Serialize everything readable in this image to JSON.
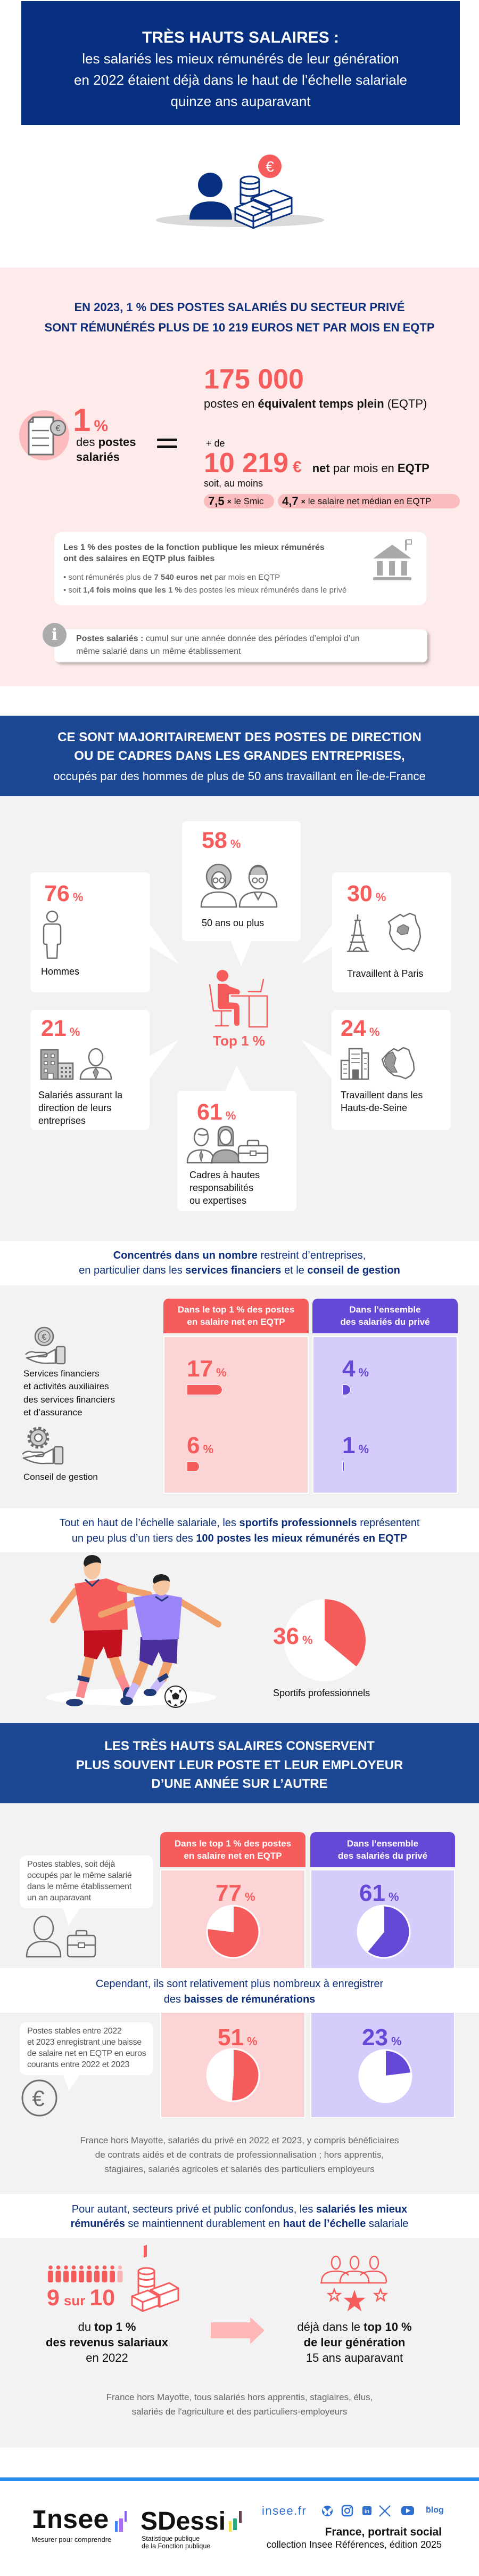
{
  "header": {
    "title": "TRÈS HAUTS SALAIRES :",
    "subtitle_lines": [
      "les salariés les mieux rémunérés de leur génération",
      "en 2022 étaient déjà dans le haut de l’échelle salariale",
      "quinze ans auparavant"
    ],
    "illustration_icon": "person-with-money-icon"
  },
  "intro": {
    "heading_lines": [
      "EN 2023, 1 % DES POSTES SALARIÉS DU SECTEUR PRIVÉ",
      "SONT RÉMUNÉRÉS PLUS DE 10 219 EUROS NET PAR MOIS EN EQTP"
    ],
    "share_value": "1",
    "share_unit": "%",
    "share_label_line1": [
      {
        "t": "des "
      },
      {
        "t": "postes",
        "b": true
      }
    ],
    "share_label_line2": "salariés",
    "count_value": "175 000",
    "count_caption": [
      {
        "t": "postes en "
      },
      {
        "t": "équivalent temps plein",
        "b": true
      },
      {
        "t": " (EQTP)"
      }
    ],
    "threshold_prefix": "+ de",
    "threshold_value": "10 219",
    "threshold_currency": "€",
    "threshold_caption": [
      {
        "t": "net",
        "b": true
      },
      {
        "t": " par mois en "
      },
      {
        "t": "EQTP",
        "b": true
      }
    ],
    "threshold_soit": "soit, au moins",
    "pills": [
      {
        "value": "7,5",
        "times": "×",
        "label": "le Smic"
      },
      {
        "value": "4,7",
        "times": "×",
        "label": "le salaire net médian en EQTP"
      }
    ],
    "public_box": {
      "title_lines": [
        "Les 1 % des postes de la fonction publique les mieux rémunérés",
        "ont des salaires en EQTP plus faibles"
      ],
      "bullets": [
        [
          {
            "t": "• sont rémunérés plus de "
          },
          {
            "t": "7 540 euros net",
            "b": true
          },
          {
            "t": " par mois en EQTP"
          }
        ],
        [
          {
            "t": "• soit "
          },
          {
            "t": "1,4 fois moins que les 1 %",
            "b": true
          },
          {
            "t": " des postes les mieux rémunérés dans le privé"
          }
        ]
      ]
    },
    "info_box": {
      "icon": "i",
      "line1": [
        {
          "t": "Postes salariés  :",
          "b": true
        },
        {
          "t": " cumul sur une année donnée des périodes d’emploi d’un"
        }
      ],
      "line2": "même salarié dans un même établissement"
    }
  },
  "profile": {
    "heading_lines": [
      "CE SONT MAJORITAIREMENT DES POSTES DE DIRECTION",
      "OU DE CADRES DANS LES GRANDES ENTREPRISES,"
    ],
    "subheading": "occupés par des hommes de plus de 50 ans travaillant en Île-de-France",
    "unit": "%",
    "center_label": "Top 1 %",
    "cards": [
      {
        "label_lines": [
          "Hommes"
        ]
      },
      {
        "label_lines": [
          "50 ans ou plus"
        ]
      },
      {
        "label_lines": [
          "Travaillent à Paris"
        ]
      },
      {
        "label_lines": [
          "Salariés assurant la",
          "direction de leurs",
          "entreprises"
        ]
      },
      {
        "label_lines": [
          "Travaillent dans les",
          "Hauts-de-Seine"
        ]
      },
      {
        "label_lines": [
          "Cadres à hautes",
          "responsabilités",
          "ou expertises"
        ]
      }
    ]
  },
  "sectors": {
    "intro_lines": [
      [
        {
          "t": "Concentrés dans un nombre",
          "b": true
        },
        {
          "t": " restreint d’entreprises,"
        }
      ],
      [
        {
          "t": "en particulier dans les "
        },
        {
          "t": "services financiers",
          "b": true
        },
        {
          "t": " et le "
        },
        {
          "t": "conseil de gestion",
          "b": true
        }
      ]
    ],
    "column_headers": [
      [
        "Dans le top 1 % des postes",
        "en salaire net en EQTP"
      ],
      [
        "Dans l’ensemble",
        "des salariés du privé"
      ]
    ],
    "rows": [
      {
        "label_lines": [
          "Services financiers",
          "et activités auxiliaires",
          "des services financiers",
          "et d’assurance"
        ]
      },
      {
        "label_lines": [
          "Conseil de gestion"
        ]
      }
    ],
    "unit": "%"
  },
  "sports": {
    "intro_lines": [
      [
        {
          "t": "Tout en haut de l’échelle salariale, les "
        },
        {
          "t": "sportifs professionnels",
          "b": true
        },
        {
          "t": " représentent"
        }
      ],
      [
        {
          "t": "un peu plus d’un tiers des "
        },
        {
          "t": "100 postes les mieux rémunérés en EQTP",
          "b": true
        }
      ]
    ],
    "label": "Sportifs professionnels",
    "unit": "%"
  },
  "stability": {
    "heading_lines": [
      "LES TRÈS HAUTS SALAIRES CONSERVENT",
      "PLUS SOUVENT LEUR POSTE ET LEUR EMPLOYEUR",
      "D’UNE ANNÉE SUR L’AUTRE"
    ],
    "column_headers": [
      [
        "Dans le top 1 % des postes",
        "en salaire net en EQTP"
      ],
      [
        "Dans l’ensemble",
        "des salariés du privé"
      ]
    ],
    "stable_note_lines": [
      "Postes stables, soit déjà",
      "occupés par le même salarié",
      "dans le même établissement",
      "un an auparavant"
    ],
    "decline_intro_lines": [
      [
        {
          "t": "Cependant, ils sont relativement plus nombreux à enregistrer"
        }
      ],
      [
        {
          "t": "des "
        },
        {
          "t": "baisses de rémunérations",
          "b": true
        }
      ]
    ],
    "decline_note_lines": [
      "Postes stables entre 2022",
      "et 2023 enregistrant une baisse",
      "de salaire net en EQTP en euros",
      "courants entre 2022 et 2023"
    ],
    "unit": "%",
    "source_lines": [
      "France hors Mayotte, salariés du privé en 2022 et 2023, y compris bénéficiaires",
      "de contrats aidés et de contrats de professionnalisation ; hors apprentis,",
      "stagiaires, salariés agricoles et salariés des particuliers employeurs"
    ]
  },
  "persistence": {
    "intro_lines": [
      [
        {
          "t": "Pour autant, secteurs privé et public confondus, les "
        },
        {
          "t": "salariés les mieux",
          "b": true
        }
      ],
      [
        {
          "t": "rémunérés",
          "b": true
        },
        {
          "t": " se maintiennent durablement en "
        },
        {
          "t": "haut de l’échelle",
          "b": true
        },
        {
          "t": " salariale"
        }
      ]
    ],
    "ratio_num": "9",
    "ratio_sur": "sur",
    "ratio_den": "10",
    "left_lines": [
      [
        {
          "t": "du "
        },
        {
          "t": "top 1 %",
          "b": true
        }
      ],
      [
        {
          "t": "des revenus salariaux",
          "b": true
        }
      ],
      [
        {
          "t": "en 2022"
        }
      ]
    ],
    "right_lines": [
      [
        {
          "t": "déjà dans le "
        },
        {
          "t": "top 10 %",
          "b": true
        }
      ],
      [
        {
          "t": "de leur génération",
          "b": true
        }
      ],
      [
        {
          "t": "15 ans auparavant"
        }
      ]
    ],
    "source_lines": [
      "France hors Mayotte, tous salariés hors apprentis, stagiaires, élus,",
      "salariés de l'agriculture et des particuliers-employeurs"
    ]
  },
  "footer": {
    "insee_logo": "Insee",
    "insee_tagline": "Mesurer pour comprendre",
    "sdessi_logo": "SDessi",
    "sdessi_tagline_lines": [
      "Statistique publique",
      "de la Fonction publique"
    ],
    "site": "insee.fr",
    "social_icons": [
      "bluesky-icon",
      "instagram-icon",
      "linkedin-icon",
      "x-icon",
      "youtube-icon",
      "blog-icon"
    ],
    "blog_label": "blog",
    "blog_sup": "le",
    "publication": "France, portrait social",
    "collection": "collection Insee Références, édition 2025"
  },
  "colors": {
    "navy": "#06307f",
    "band_blue": "#1b4793",
    "red": "#f65c5c",
    "purple": "#6549d6",
    "pink_bg": "#fdeaea",
    "gray_bg": "#f2f2f2",
    "light_red": "#fdd4d6",
    "light_purple": "#d6ccfb",
    "footer_line": "#2b8cf0"
  },
  "chart_data": [
    {
      "type": "bar",
      "title": "Profil des postes du top 1 %",
      "categories": [
        "Hommes",
        "50 ans ou plus",
        "Travaillent à Paris",
        "Salariés assurant la direction de leurs entreprises",
        "Travaillent dans les Hauts-de-Seine",
        "Cadres à hautes responsabilités ou expertises"
      ],
      "values": [
        76,
        58,
        30,
        21,
        24,
        61
      ],
      "unit": "%"
    },
    {
      "type": "bar",
      "title": "Concentrés dans un nombre restreint d’entreprises, en particulier dans les services financiers et le conseil de gestion",
      "categories": [
        "Services financiers et activités auxiliaires des services financiers et d’assurance",
        "Conseil de gestion"
      ],
      "series": [
        {
          "name": "Dans le top 1 % des postes en salaire net en EQTP",
          "values": [
            17,
            6
          ],
          "color": "#f65c5c"
        },
        {
          "name": "Dans l’ensemble des salariés du privé",
          "values": [
            4,
            1
          ],
          "color": "#6549d6"
        }
      ],
      "unit": "%"
    },
    {
      "type": "pie",
      "title": "Sportifs professionnels parmi les 100 postes les mieux rémunérés en EQTP",
      "categories": [
        "Sportifs professionnels"
      ],
      "values": [
        36
      ],
      "unit": "%"
    },
    {
      "type": "pie",
      "title": "Postes stables, soit déjà occupés par le même salarié dans le même établissement un an auparavant",
      "categories": [
        "Dans le top 1 % des postes en salaire net en EQTP",
        "Dans l’ensemble des salariés du privé"
      ],
      "values": [
        77,
        61
      ],
      "unit": "%"
    },
    {
      "type": "pie",
      "title": "Postes stables entre 2022 et 2023 enregistrant une baisse de salaire net en EQTP en euros courants",
      "categories": [
        "Dans le top 1 % des postes en salaire net en EQTP",
        "Dans l’ensemble des salariés du privé"
      ],
      "values": [
        51,
        23
      ],
      "unit": "%"
    }
  ]
}
